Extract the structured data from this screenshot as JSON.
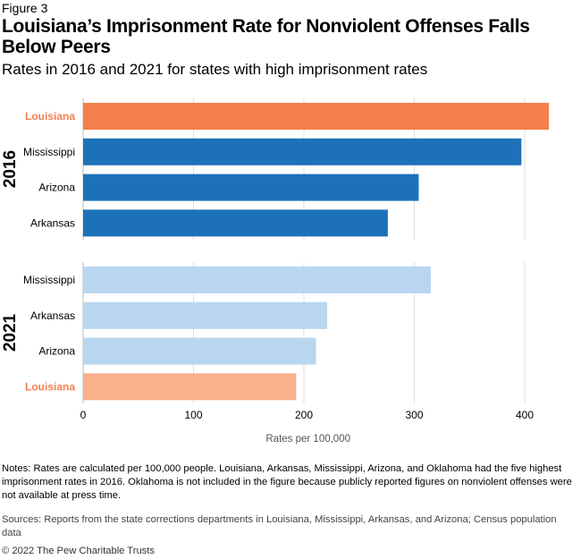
{
  "figure_label": "Figure 3",
  "chart_data": {
    "type": "bar",
    "orientation": "horizontal",
    "title": "Louisiana’s Imprisonment Rate for Nonviolent Offenses Falls Below Peers",
    "subtitle": "Rates in 2016 and 2021 for states with high imprisonment rates",
    "xlabel": "Rates per 100,000",
    "xlim": [
      0,
      440
    ],
    "xticks": [
      0,
      100,
      200,
      300,
      400
    ],
    "grid": true,
    "panels": [
      {
        "name": "2016",
        "categories": [
          "Louisiana",
          "Mississippi",
          "Arizona",
          "Arkansas"
        ],
        "values": [
          422,
          397,
          304,
          276
        ],
        "colors": [
          "#f47f4c",
          "#1d71b8",
          "#1d71b8",
          "#1d71b8"
        ]
      },
      {
        "name": "2021",
        "categories": [
          "Mississippi",
          "Arkansas",
          "Arizona",
          "Louisiana"
        ],
        "values": [
          315,
          221,
          211,
          193
        ],
        "colors": [
          "#b8d6f0",
          "#b8d6f0",
          "#b8d6f0",
          "#fbb08c"
        ]
      }
    ],
    "highlight_color": "#f47f4c"
  },
  "notes": "Notes: Rates are calculated per 100,000 people. Louisiana, Arkansas, Mississippi, Arizona, and Oklahoma had the five highest imprisonment rates in 2016. Oklahoma is not included in the figure because publicly reported figures on nonviolent offenses were not available at press time.",
  "sources": "Sources: Reports from the state corrections departments in Louisiana, Mississippi, Arkansas, and Arizona; Census population data",
  "copyright": "© 2022 The Pew Charitable Trusts"
}
